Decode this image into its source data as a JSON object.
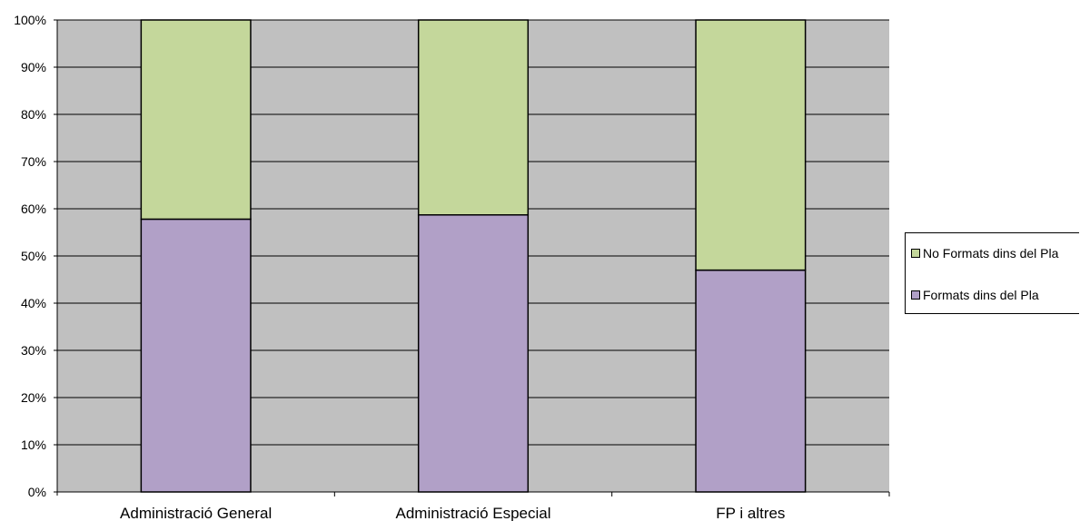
{
  "chart_data": {
    "type": "bar",
    "stacked": true,
    "categories": [
      "Administració General",
      "Administració Especial",
      "FP i altres"
    ],
    "series": [
      {
        "name": "Formats dins del Pla",
        "values": [
          57.8,
          58.7,
          47.0
        ],
        "color": "#b1a0c7"
      },
      {
        "name": "No Formats dins del Pla",
        "values": [
          42.2,
          41.3,
          53.0
        ],
        "color": "#c4d79b"
      }
    ],
    "y_ticks": [
      "0%",
      "10%",
      "20%",
      "30%",
      "40%",
      "50%",
      "60%",
      "70%",
      "80%",
      "90%",
      "100%"
    ],
    "ylim": [
      0,
      100
    ],
    "grid": true,
    "plot_background": "#c0c0c0",
    "legend_position": "right",
    "legend": [
      "No Formats dins del Pla",
      "Formats dins del Pla"
    ]
  }
}
